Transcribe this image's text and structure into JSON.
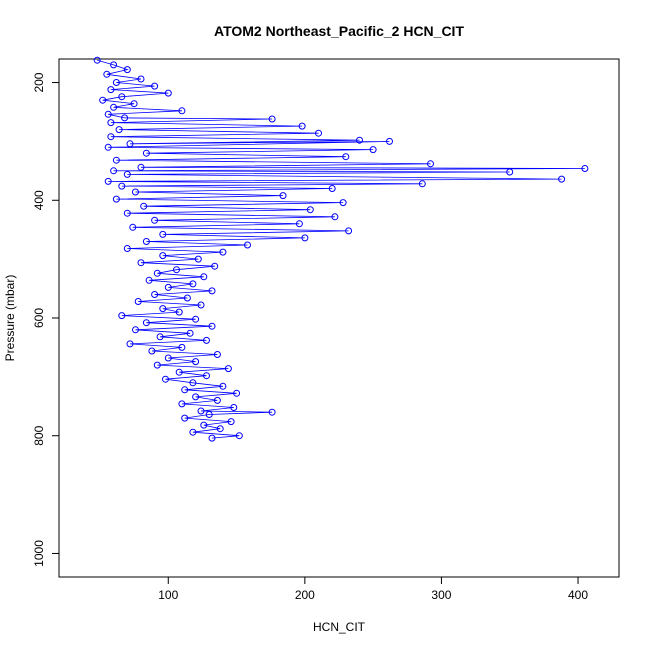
{
  "chart_data": {
    "type": "scatter",
    "title": "ATOM2 Northeast_Pacific_2 HCN_CIT",
    "xlabel": "HCN_CIT",
    "ylabel": "Pressure (mbar)",
    "xlim": [
      20,
      430
    ],
    "ylim": [
      1040,
      160
    ],
    "y_axis_inverted": true,
    "x_ticks": [
      100,
      200,
      300,
      400
    ],
    "y_ticks": [
      200,
      400,
      600,
      800,
      1000
    ],
    "grid": false,
    "legend": "none",
    "marker": "open-circle",
    "connected_by_lines": true,
    "series_color": "#0000ff",
    "series": [
      {
        "points": [
          [
            48,
            162
          ],
          [
            60,
            170
          ],
          [
            70,
            178
          ],
          [
            55,
            186
          ],
          [
            80,
            194
          ],
          [
            62,
            200
          ],
          [
            90,
            206
          ],
          [
            58,
            212
          ],
          [
            100,
            218
          ],
          [
            66,
            224
          ],
          [
            52,
            230
          ],
          [
            75,
            236
          ],
          [
            60,
            242
          ],
          [
            110,
            248
          ],
          [
            56,
            254
          ],
          [
            68,
            260
          ],
          [
            176,
            262
          ],
          [
            58,
            268
          ],
          [
            198,
            274
          ],
          [
            64,
            280
          ],
          [
            210,
            286
          ],
          [
            58,
            292
          ],
          [
            240,
            298
          ],
          [
            72,
            304
          ],
          [
            262,
            300
          ],
          [
            56,
            310
          ],
          [
            250,
            314
          ],
          [
            84,
            320
          ],
          [
            230,
            326
          ],
          [
            62,
            332
          ],
          [
            292,
            338
          ],
          [
            80,
            344
          ],
          [
            405,
            346
          ],
          [
            60,
            350
          ],
          [
            350,
            352
          ],
          [
            70,
            356
          ],
          [
            388,
            364
          ],
          [
            56,
            368
          ],
          [
            286,
            372
          ],
          [
            66,
            376
          ],
          [
            220,
            380
          ],
          [
            76,
            386
          ],
          [
            184,
            392
          ],
          [
            62,
            398
          ],
          [
            228,
            404
          ],
          [
            82,
            410
          ],
          [
            204,
            416
          ],
          [
            70,
            422
          ],
          [
            222,
            428
          ],
          [
            90,
            434
          ],
          [
            196,
            440
          ],
          [
            74,
            446
          ],
          [
            232,
            452
          ],
          [
            96,
            458
          ],
          [
            200,
            464
          ],
          [
            84,
            470
          ],
          [
            158,
            476
          ],
          [
            70,
            482
          ],
          [
            140,
            488
          ],
          [
            96,
            494
          ],
          [
            122,
            500
          ],
          [
            80,
            506
          ],
          [
            134,
            512
          ],
          [
            106,
            518
          ],
          [
            92,
            524
          ],
          [
            126,
            530
          ],
          [
            86,
            536
          ],
          [
            118,
            542
          ],
          [
            100,
            548
          ],
          [
            132,
            554
          ],
          [
            90,
            560
          ],
          [
            114,
            566
          ],
          [
            78,
            572
          ],
          [
            124,
            578
          ],
          [
            96,
            584
          ],
          [
            108,
            590
          ],
          [
            66,
            596
          ],
          [
            120,
            602
          ],
          [
            84,
            608
          ],
          [
            132,
            614
          ],
          [
            76,
            620
          ],
          [
            116,
            626
          ],
          [
            94,
            632
          ],
          [
            128,
            638
          ],
          [
            72,
            644
          ],
          [
            110,
            650
          ],
          [
            88,
            656
          ],
          [
            136,
            662
          ],
          [
            100,
            668
          ],
          [
            120,
            674
          ],
          [
            92,
            680
          ],
          [
            144,
            686
          ],
          [
            108,
            692
          ],
          [
            128,
            698
          ],
          [
            98,
            704
          ],
          [
            118,
            710
          ],
          [
            140,
            716
          ],
          [
            112,
            722
          ],
          [
            150,
            728
          ],
          [
            120,
            734
          ],
          [
            136,
            740
          ],
          [
            110,
            746
          ],
          [
            148,
            752
          ],
          [
            124,
            758
          ],
          [
            176,
            760
          ],
          [
            130,
            764
          ],
          [
            112,
            770
          ],
          [
            146,
            776
          ],
          [
            126,
            782
          ],
          [
            138,
            788
          ],
          [
            118,
            794
          ],
          [
            152,
            800
          ],
          [
            132,
            804
          ]
        ]
      }
    ]
  }
}
